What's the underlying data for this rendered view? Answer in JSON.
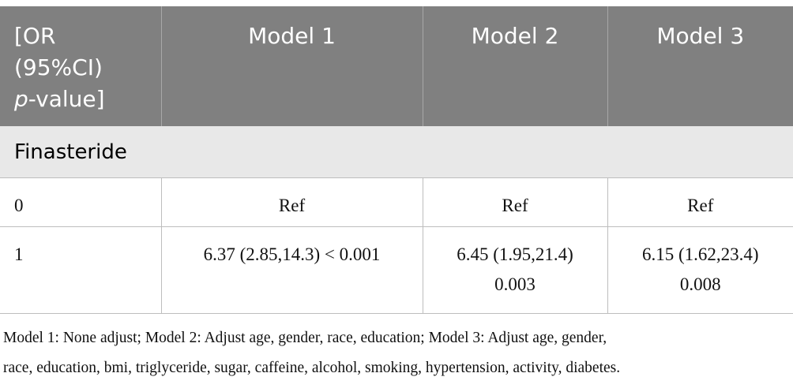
{
  "table": {
    "header": [
      {
        "lines": [
          "[OR",
          "(95%CI)"
        ],
        "italic": "p",
        "rest": "-value]"
      },
      "Model 1",
      "Model 2",
      "Model 3"
    ],
    "section": "Finasteride",
    "rows": [
      [
        [
          "0"
        ],
        [
          "Ref"
        ],
        [
          "Ref"
        ],
        [
          "Ref"
        ]
      ],
      [
        [
          "1"
        ],
        [
          "6.37 (2.85,14.3) < 0.001"
        ],
        [
          "6.45 (1.95,21.4)",
          "0.003"
        ],
        [
          "6.15 (1.62,23.4)",
          "0.008"
        ]
      ]
    ]
  },
  "footnote": [
    "Model 1: None adjust; Model 2: Adjust age, gender, race, education; Model 3: Adjust age, gender,",
    "race, education, bmi, triglyceride, sugar, caffeine, alcohol, smoking, hypertension, activity, diabetes."
  ]
}
